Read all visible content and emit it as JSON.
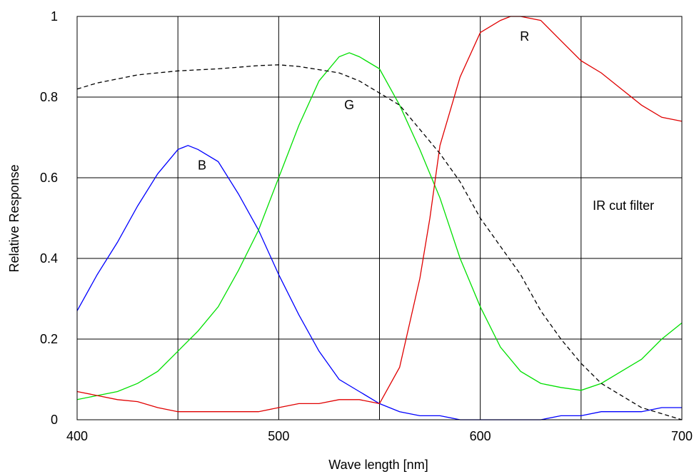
{
  "chart_data": {
    "type": "line",
    "xlabel": "Wave length [nm]",
    "ylabel": "Relative Response",
    "xlim": [
      400,
      700
    ],
    "ylim": [
      0,
      1
    ],
    "grid": true,
    "x_ticks": [
      "400",
      "500",
      "600",
      "700"
    ],
    "y_ticks": [
      "0",
      "0.2",
      "0.4",
      "0.6",
      "0.8",
      "1"
    ],
    "series": [
      {
        "name": "B",
        "color": "#0000ff",
        "dashed": false,
        "label_at": [
          462,
          0.62
        ],
        "points": [
          [
            400,
            0.27
          ],
          [
            410,
            0.36
          ],
          [
            420,
            0.44
          ],
          [
            430,
            0.53
          ],
          [
            440,
            0.61
          ],
          [
            450,
            0.67
          ],
          [
            455,
            0.68
          ],
          [
            460,
            0.67
          ],
          [
            470,
            0.64
          ],
          [
            480,
            0.56
          ],
          [
            490,
            0.47
          ],
          [
            500,
            0.36
          ],
          [
            510,
            0.26
          ],
          [
            520,
            0.17
          ],
          [
            530,
            0.1
          ],
          [
            540,
            0.07
          ],
          [
            550,
            0.04
          ],
          [
            560,
            0.02
          ],
          [
            570,
            0.01
          ],
          [
            580,
            0.01
          ],
          [
            590,
            0.0
          ],
          [
            600,
            0.0
          ],
          [
            610,
            0.0
          ],
          [
            620,
            0.0
          ],
          [
            630,
            0.0
          ],
          [
            640,
            0.01
          ],
          [
            650,
            0.01
          ],
          [
            660,
            0.02
          ],
          [
            670,
            0.02
          ],
          [
            680,
            0.02
          ],
          [
            690,
            0.03
          ],
          [
            700,
            0.03
          ]
        ]
      },
      {
        "name": "G",
        "color": "#00e000",
        "dashed": false,
        "label_at": [
          535,
          0.77
        ],
        "points": [
          [
            400,
            0.05
          ],
          [
            410,
            0.06
          ],
          [
            420,
            0.07
          ],
          [
            430,
            0.09
          ],
          [
            440,
            0.12
          ],
          [
            450,
            0.17
          ],
          [
            460,
            0.22
          ],
          [
            470,
            0.28
          ],
          [
            480,
            0.37
          ],
          [
            490,
            0.47
          ],
          [
            500,
            0.6
          ],
          [
            510,
            0.73
          ],
          [
            520,
            0.84
          ],
          [
            530,
            0.9
          ],
          [
            535,
            0.91
          ],
          [
            540,
            0.9
          ],
          [
            550,
            0.87
          ],
          [
            560,
            0.78
          ],
          [
            570,
            0.67
          ],
          [
            580,
            0.55
          ],
          [
            590,
            0.4
          ],
          [
            600,
            0.28
          ],
          [
            610,
            0.18
          ],
          [
            620,
            0.12
          ],
          [
            630,
            0.09
          ],
          [
            640,
            0.08
          ],
          [
            650,
            0.073
          ],
          [
            660,
            0.09
          ],
          [
            670,
            0.12
          ],
          [
            680,
            0.15
          ],
          [
            690,
            0.2
          ],
          [
            700,
            0.24
          ]
        ]
      },
      {
        "name": "R",
        "color": "#e00000",
        "dashed": false,
        "label_at": [
          622,
          0.94
        ],
        "points": [
          [
            400,
            0.07
          ],
          [
            410,
            0.06
          ],
          [
            420,
            0.05
          ],
          [
            430,
            0.045
          ],
          [
            440,
            0.03
          ],
          [
            450,
            0.02
          ],
          [
            460,
            0.02
          ],
          [
            470,
            0.02
          ],
          [
            480,
            0.02
          ],
          [
            490,
            0.02
          ],
          [
            500,
            0.03
          ],
          [
            510,
            0.04
          ],
          [
            520,
            0.04
          ],
          [
            530,
            0.05
          ],
          [
            540,
            0.05
          ],
          [
            550,
            0.04
          ],
          [
            560,
            0.13
          ],
          [
            570,
            0.35
          ],
          [
            575,
            0.5
          ],
          [
            580,
            0.68
          ],
          [
            590,
            0.85
          ],
          [
            600,
            0.96
          ],
          [
            610,
            0.99
          ],
          [
            615,
            1.0
          ],
          [
            620,
            1.0
          ],
          [
            630,
            0.99
          ],
          [
            640,
            0.94
          ],
          [
            650,
            0.89
          ],
          [
            660,
            0.86
          ],
          [
            670,
            0.82
          ],
          [
            680,
            0.78
          ],
          [
            690,
            0.75
          ],
          [
            700,
            0.74
          ]
        ]
      },
      {
        "name": "IR cut filter",
        "color": "#000000",
        "dashed": true,
        "label_at": [
          671,
          0.52
        ],
        "points": [
          [
            400,
            0.82
          ],
          [
            410,
            0.835
          ],
          [
            420,
            0.845
          ],
          [
            430,
            0.855
          ],
          [
            450,
            0.865
          ],
          [
            470,
            0.87
          ],
          [
            490,
            0.878
          ],
          [
            500,
            0.88
          ],
          [
            510,
            0.876
          ],
          [
            520,
            0.868
          ],
          [
            530,
            0.86
          ],
          [
            540,
            0.84
          ],
          [
            550,
            0.81
          ],
          [
            560,
            0.78
          ],
          [
            570,
            0.72
          ],
          [
            580,
            0.66
          ],
          [
            590,
            0.59
          ],
          [
            600,
            0.5
          ],
          [
            610,
            0.43
          ],
          [
            620,
            0.36
          ],
          [
            630,
            0.27
          ],
          [
            640,
            0.2
          ],
          [
            650,
            0.14
          ],
          [
            660,
            0.09
          ],
          [
            670,
            0.06
          ],
          [
            680,
            0.03
          ],
          [
            690,
            0.015
          ],
          [
            700,
            0.0
          ]
        ]
      }
    ]
  }
}
